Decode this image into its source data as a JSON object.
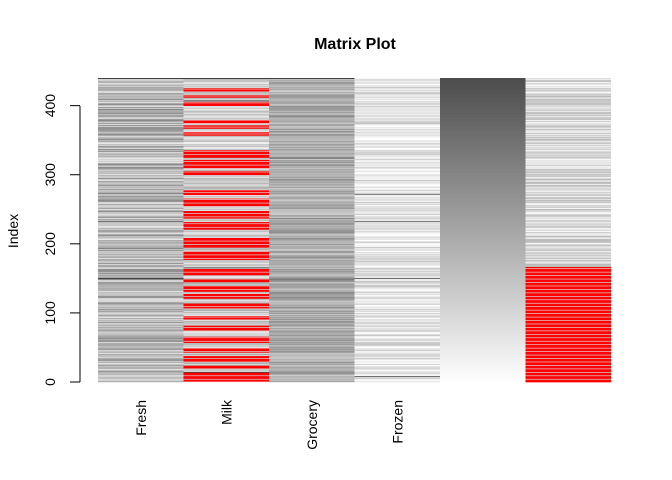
{
  "chart_data": {
    "type": "heatmap",
    "title": "Matrix Plot",
    "ylabel": "Index",
    "xlabel": "",
    "columns": [
      "Fresh",
      "Milk",
      "Grocery",
      "Frozen",
      "",
      ""
    ],
    "n_rows": 440,
    "ylim": [
      0,
      440
    ],
    "y_ticks": [
      0,
      100,
      200,
      300,
      400
    ],
    "color_scale": {
      "low": "#ffffff",
      "high": "#000000",
      "missing": "#ff0000"
    },
    "column_patterns": [
      {
        "name": "Fresh",
        "base": 0.72,
        "spread": 0.22,
        "dark_rows": [
          150,
          151,
          233,
          440
        ]
      },
      {
        "name": "Milk",
        "base": 0.8,
        "spread": 0.15,
        "missing_rows": [
          [
            2,
            14
          ],
          [
            20,
            24
          ],
          [
            30,
            38
          ],
          [
            44,
            50
          ],
          [
            58,
            66
          ],
          [
            75,
            82
          ],
          [
            92,
            96
          ],
          [
            108,
            114
          ],
          [
            122,
            128
          ],
          [
            132,
            140
          ],
          [
            146,
            150
          ],
          [
            156,
            165
          ],
          [
            178,
            190
          ],
          [
            196,
            210
          ],
          [
            222,
            232
          ],
          [
            238,
            248
          ],
          [
            256,
            266
          ],
          [
            272,
            278
          ],
          [
            300,
            306
          ],
          [
            310,
            322
          ],
          [
            326,
            336
          ],
          [
            358,
            362
          ],
          [
            368,
            372
          ],
          [
            376,
            380
          ],
          [
            400,
            406
          ],
          [
            413,
            416
          ],
          [
            422,
            426
          ]
        ],
        "dark_rows": [
          15,
          166,
          408,
          440
        ]
      },
      {
        "name": "Grocery",
        "base": 0.68,
        "spread": 0.14,
        "dark_rows": [
          150,
          325,
          440
        ]
      },
      {
        "name": "Frozen",
        "base": 0.9,
        "spread": 0.14,
        "dark_rows": [
          9,
          151,
          233,
          272
        ]
      },
      {
        "name": "",
        "gradient": true
      },
      {
        "name": "",
        "base": 0.85,
        "spread": 0.15,
        "missing_rows": [
          [
            1,
            167
          ]
        ]
      }
    ]
  }
}
